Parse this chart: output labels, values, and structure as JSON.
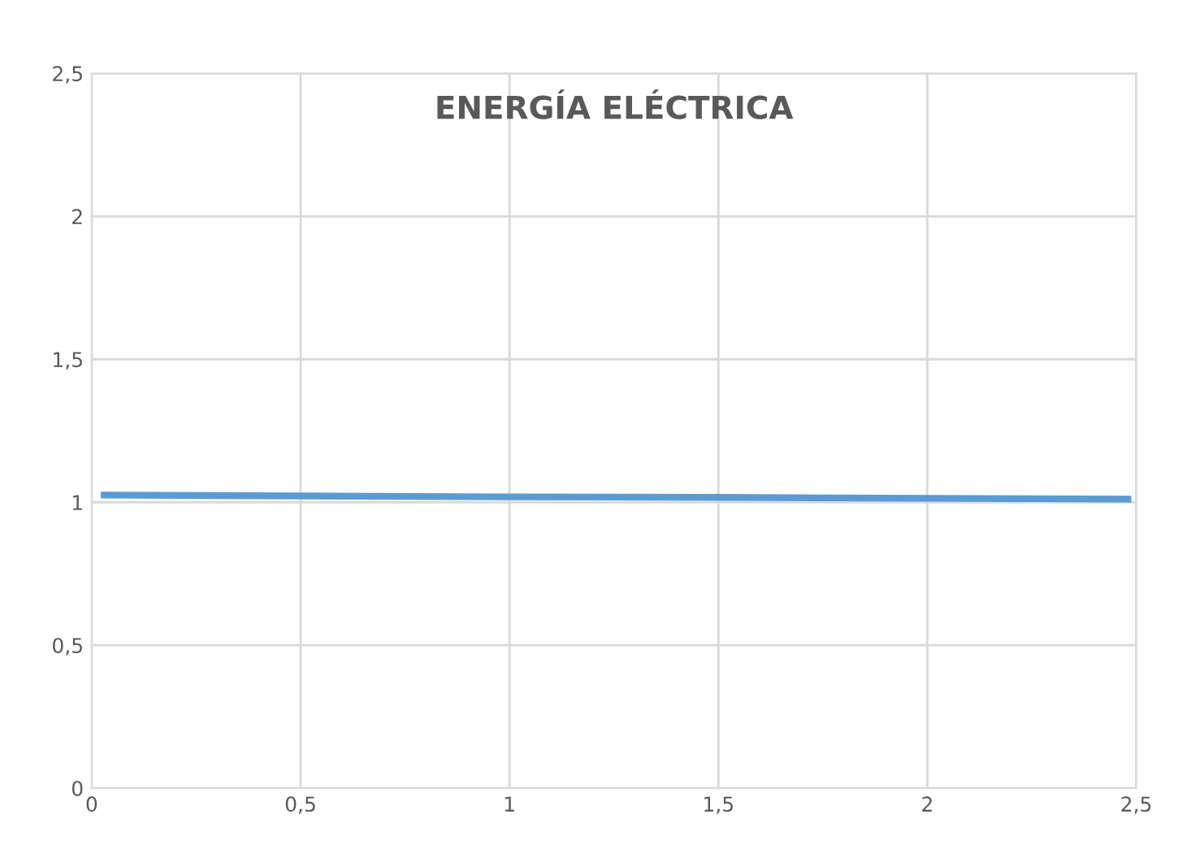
{
  "chart_data": {
    "type": "line",
    "title": "ENERGÍA ELÉCTRICA",
    "x": [
      0.03,
      0.5,
      1,
      1.5,
      2,
      2.48
    ],
    "series": [
      {
        "color": "#5b9bd5",
        "values": [
          1.025,
          1.022,
          1.019,
          1.017,
          1.014,
          1.011
        ]
      }
    ],
    "xlim": [
      0,
      2.5
    ],
    "ylim": [
      0,
      2.5
    ],
    "xticks": [
      0,
      {
        "value": 0.5,
        "label": "0,5"
      },
      1,
      {
        "value": 1.5,
        "label": "1,5"
      },
      2,
      {
        "value": 2.5,
        "label": "2,5"
      }
    ],
    "yticks": [
      0,
      {
        "value": 0.5,
        "label": "0,5"
      },
      1,
      {
        "value": 1.5,
        "label": "1,5"
      },
      2,
      {
        "value": 2.5,
        "label": "2,5"
      }
    ],
    "grid": true,
    "marker": "none",
    "line_style": "solid",
    "legend": false
  }
}
